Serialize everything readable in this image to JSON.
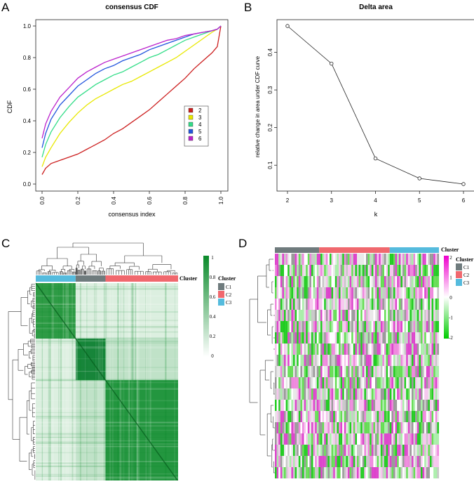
{
  "panels": {
    "A": {
      "label": "A"
    },
    "B": {
      "label": "B"
    },
    "C": {
      "label": "C"
    },
    "D": {
      "label": "D"
    }
  },
  "chart_data": [
    {
      "type": "line",
      "panel": "A",
      "title": "consensus CDF",
      "xlabel": "consensus index",
      "ylabel": "CDF",
      "xlim": [
        0,
        1
      ],
      "ylim": [
        0,
        1
      ],
      "xticks": [
        "0.0",
        "0.2",
        "0.4",
        "0.6",
        "0.8",
        "1.0"
      ],
      "yticks": [
        "0.0",
        "0.2",
        "0.4",
        "0.6",
        "0.8",
        "1.0"
      ],
      "legend_position": "right",
      "x": [
        0,
        0.02,
        0.05,
        0.1,
        0.15,
        0.2,
        0.25,
        0.3,
        0.35,
        0.4,
        0.45,
        0.5,
        0.55,
        0.6,
        0.65,
        0.7,
        0.75,
        0.8,
        0.85,
        0.9,
        0.95,
        0.98,
        1.0
      ],
      "series": [
        {
          "name": "2",
          "color": "#cc1f1f",
          "values": [
            0.06,
            0.1,
            0.13,
            0.15,
            0.17,
            0.19,
            0.22,
            0.25,
            0.28,
            0.32,
            0.35,
            0.39,
            0.43,
            0.47,
            0.52,
            0.57,
            0.62,
            0.67,
            0.73,
            0.78,
            0.83,
            0.87,
            1.0
          ]
        },
        {
          "name": "3",
          "color": "#e8e800",
          "values": [
            0.11,
            0.17,
            0.23,
            0.32,
            0.39,
            0.45,
            0.5,
            0.54,
            0.57,
            0.6,
            0.63,
            0.65,
            0.68,
            0.71,
            0.74,
            0.77,
            0.8,
            0.84,
            0.88,
            0.92,
            0.96,
            0.98,
            1.0
          ]
        },
        {
          "name": "4",
          "color": "#33dd88",
          "values": [
            0.17,
            0.25,
            0.33,
            0.42,
            0.49,
            0.55,
            0.59,
            0.63,
            0.66,
            0.69,
            0.71,
            0.74,
            0.77,
            0.8,
            0.82,
            0.85,
            0.88,
            0.91,
            0.93,
            0.95,
            0.97,
            0.98,
            1.0
          ]
        },
        {
          "name": "5",
          "color": "#2255dd",
          "values": [
            0.23,
            0.32,
            0.41,
            0.5,
            0.56,
            0.62,
            0.66,
            0.7,
            0.73,
            0.75,
            0.78,
            0.8,
            0.82,
            0.85,
            0.87,
            0.89,
            0.91,
            0.93,
            0.95,
            0.96,
            0.97,
            0.98,
            1.0
          ]
        },
        {
          "name": "6",
          "color": "#bb22cc",
          "values": [
            0.29,
            0.38,
            0.46,
            0.55,
            0.61,
            0.67,
            0.71,
            0.74,
            0.77,
            0.79,
            0.81,
            0.83,
            0.85,
            0.87,
            0.89,
            0.91,
            0.92,
            0.94,
            0.95,
            0.96,
            0.97,
            0.98,
            1.0
          ]
        }
      ]
    },
    {
      "type": "line",
      "panel": "B",
      "title": "Delta area",
      "xlabel": "k",
      "ylabel": "relative change in area under CDF curve",
      "x": [
        2,
        3,
        4,
        5,
        6
      ],
      "values": [
        0.47,
        0.37,
        0.118,
        0.065,
        0.05
      ],
      "xlim": [
        2,
        6
      ],
      "ylim": [
        0.05,
        0.47
      ],
      "xticks": [
        "2",
        "3",
        "4",
        "5",
        "6"
      ],
      "yticks": [
        "0.1",
        "0.2",
        "0.3",
        "0.4"
      ]
    },
    {
      "type": "heatmap",
      "panel": "C",
      "description_note": "consensus matrix",
      "annotation_label": "Cluster",
      "legend_title": "Cluster",
      "legend": [
        {
          "name": "C1",
          "color": "#6f7b7d"
        },
        {
          "name": "C2",
          "color": "#f0686e"
        },
        {
          "name": "C3",
          "color": "#55bbdd"
        }
      ],
      "column_order": [
        "C3",
        "C1",
        "C2"
      ],
      "cluster_fractions": [
        0.28,
        0.21,
        0.51
      ],
      "colorbar_ticks": [
        "1",
        "0.8",
        "0.6",
        "0.4",
        "0.2",
        "0"
      ],
      "colorbar_range": [
        0,
        1
      ],
      "colorbar_colors": [
        "#ffffff",
        "#0a8a2a"
      ]
    },
    {
      "type": "heatmap",
      "panel": "D",
      "annotation_label": "Cluster",
      "legend_title": "Cluster",
      "legend": [
        {
          "name": "C1",
          "color": "#6f7b7d"
        },
        {
          "name": "C2",
          "color": "#f0686e"
        },
        {
          "name": "C3",
          "color": "#55bbdd"
        }
      ],
      "column_order": [
        "C1",
        "C2",
        "C3"
      ],
      "cluster_fractions": [
        0.27,
        0.43,
        0.3
      ],
      "rows": 20,
      "colorbar_ticks": [
        "2",
        "1",
        "0",
        "-1",
        "-2"
      ],
      "colorbar_range": [
        -2,
        2
      ],
      "colorbar_colors": [
        "#00cc00",
        "#ffffff",
        "#ee00cc"
      ]
    }
  ]
}
